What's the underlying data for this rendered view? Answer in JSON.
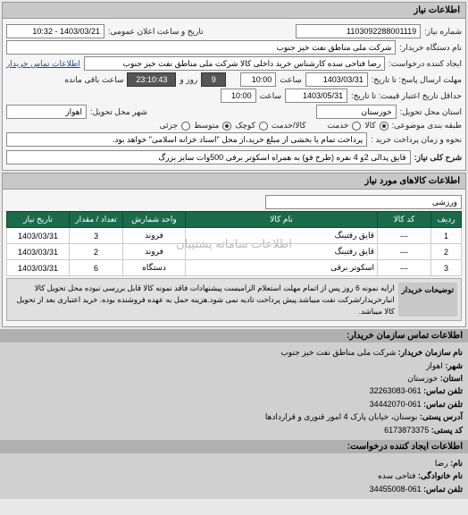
{
  "panels": {
    "need_info_header": "اطلاعات نیاز",
    "goods_header": "اطلاعات کالاهای مورد نیاز",
    "contact_header": "اطلاعات تماس سازمان خریدار:"
  },
  "fields": {
    "req_no_label": "شماره نیاز:",
    "req_no": "1103092288001119",
    "announce_date_label": "تاریخ و ساعت اعلان عمومی:",
    "announce_date": "1403/03/21 - 10:32",
    "buyer_org_label": "نام دستگاه خریدار:",
    "buyer_org": "شرکت ملی مناطق نفت خیز جنوب",
    "requester_label": "ایجاد کننده درخواست:",
    "requester": "رضا فتاحی سده   کارشناس خرید داخلی کالا   شرکت ملی مناطق نفت خیز جنوب",
    "buyer_contact_link": "اطلاعات تماس خریدار",
    "reply_deadline_label": "مهلت ارسال پاسخ: تا تاریخ:",
    "reply_date": "1403/03/31",
    "reply_hour_label": "ساعت",
    "reply_hour": "10:00",
    "days_remain": "9",
    "days_remain_label": "روز و",
    "time_remain": "23:10:43",
    "time_remain_label": "ساعت باقی مانده",
    "valid_until_label": "حداقل تاریخ اعتبار قیمت: تا تاریخ:",
    "valid_date": "1403/05/31",
    "valid_hour": "10:00",
    "delivery_state_label": "استان محل تحویل:",
    "delivery_state": "خوزستان",
    "delivery_city_label": "شهر محل تحویل:",
    "delivery_city": "اهواز",
    "pkg_type_label": "طبقه بندی موضوعی:",
    "pkg_goods": "کالا",
    "pkg_service": "خدمت",
    "size_label": "کالا/خدمت",
    "size_small": "کوچک",
    "size_medium": "متوسط",
    "size_large": "جزئی",
    "payment_label": "نحوه و زمان پرداخت خرید :",
    "payment_text": "پرداخت تمام یا بخشی از مبلغ خرید،از محل \"اسناد خزانه اسلامی\" خواهد بود.",
    "need_title_label": "شرح کلی نیاز:",
    "need_title": "قایق پدالی 2و 4 نفره (طرح قو) به همراه اسکوتر برقی 500وات سایز بزرگ",
    "sport_field": "ورزشی"
  },
  "table": {
    "headers": [
      "ردیف",
      "کد کالا",
      "نام کالا",
      "واحد شمارش",
      "تعداد / مقدار",
      "تاریخ نیاز"
    ],
    "rows": [
      [
        "1",
        "---",
        "قایق رفتینگ",
        "فروند",
        "3",
        "1403/03/31"
      ],
      [
        "2",
        "---",
        "قایق رفتینگ",
        "فروند",
        "2",
        "1403/03/31"
      ],
      [
        "3",
        "---",
        "اسکوتر برقی",
        "دستگاه",
        "6",
        "1403/03/31"
      ]
    ],
    "watermark": "اطلاعات سامانه پشتیبان"
  },
  "desc": {
    "label": "توضیحات خریدار",
    "text": "ارایه نمونه 6 روز پس از اتمام مهلت استعلام الزامیست پیشنهادات فاقد نمونه کالا قابل بررسی نبوده محل تحویل کالا انبارخریدار/شرکت نفت میباشد.پیش پرداخت تادیه نمی شود.هزینه حمل به عهده فروشنده بوده. خرید اعتباری بعد از تحویل کالا میباشد."
  },
  "contact": {
    "org_label": "نام سازمان خریدار:",
    "org": "شرکت ملی مناطق نفت خیز جنوب",
    "city_label": "شهر:",
    "city": "اهواز",
    "province_label": "استان:",
    "province": "خوزستان",
    "tel_label": "تلفن تماس:",
    "tel": "061-32263083",
    "fax_label": "تلفن تماس:",
    "fax": "061-34442070",
    "addr_label": "آدرس پستی:",
    "addr": "بوستان، خیابان پارک 4 امور قنوری و قراردادها",
    "post_label": "کد پستی:",
    "post": "6173873375",
    "creator_header": "اطلاعات ایجاد کننده درخواست:",
    "name_label": "نام:",
    "name": "رضا",
    "lname_label": "نام خانوادگی:",
    "lname": "فتاحی سده",
    "ctel_label": "تلفن تماس:",
    "ctel": "061-34455008"
  }
}
